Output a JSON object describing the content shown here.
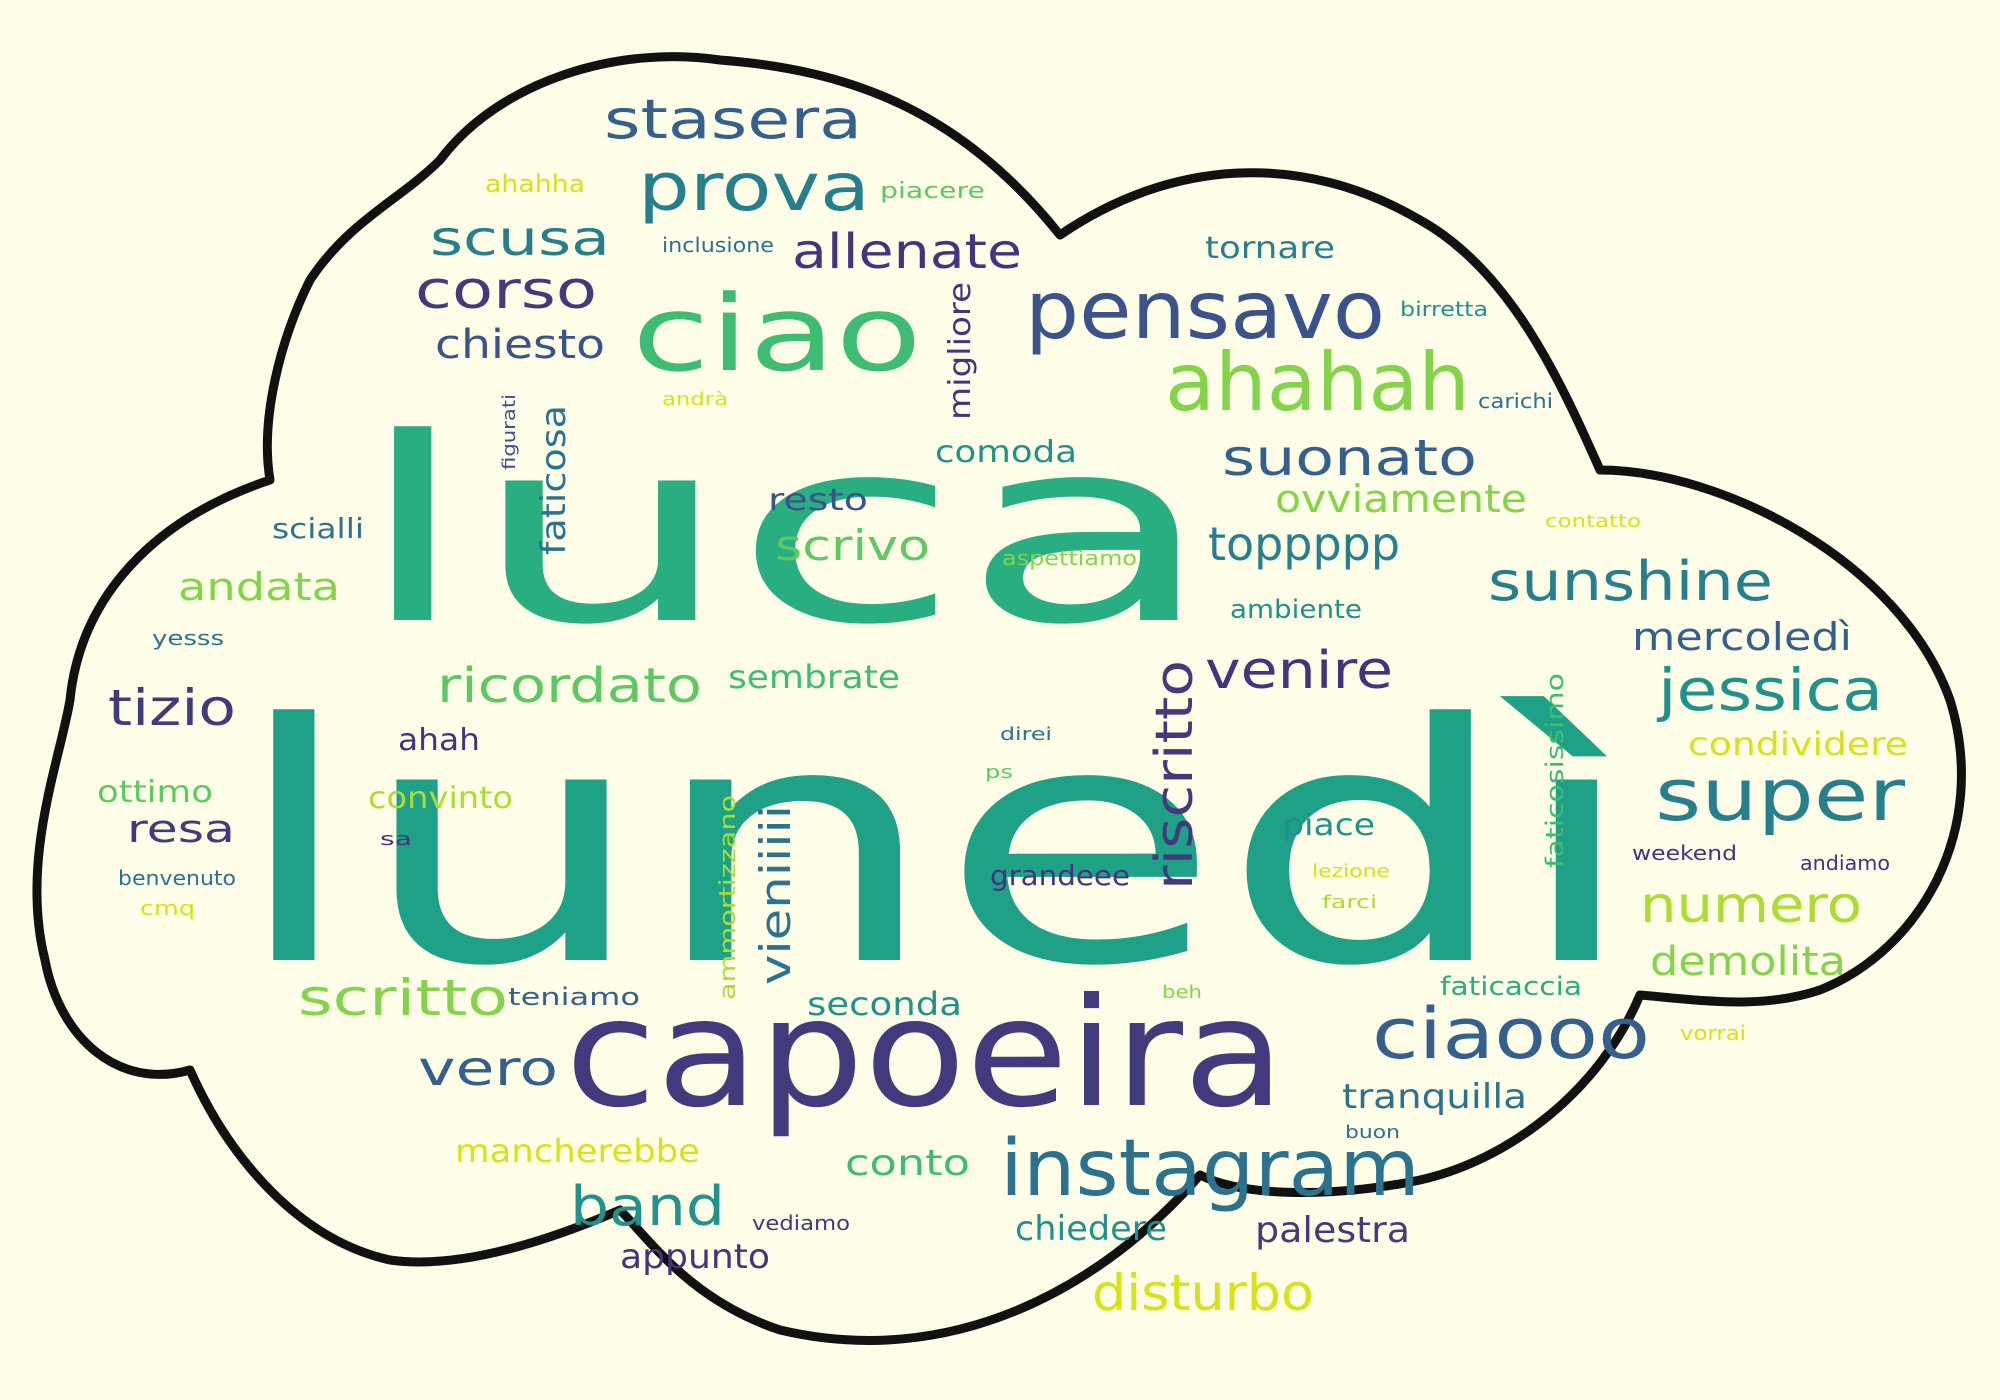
{
  "palette": {
    "dark_purple": "#46327e",
    "deep_purple": "#433a7d",
    "indigo": "#3b528b",
    "blue": "#355f8d",
    "steel_blue": "#2c728e",
    "teal_blue": "#277f8e",
    "teal": "#21918c",
    "green_teal": "#1fa187",
    "green": "#28ae80",
    "mid_green": "#3fbc73",
    "light_green": "#5ec962",
    "lime": "#84d44b",
    "yellow_green": "#addc30",
    "yellow": "#d8e219",
    "bright_yellow": "#e1e31d",
    "outline": "#111111",
    "cloud_fill": "#fdfde8"
  },
  "words": [
    {
      "text": "lunedì"
    },
    {
      "text": "luca"
    },
    {
      "text": "capoeira"
    },
    {
      "text": "ciao"
    },
    {
      "text": "pensavo"
    },
    {
      "text": "instagram"
    },
    {
      "text": "ahahah"
    },
    {
      "text": "ciaooo"
    },
    {
      "text": "prova"
    },
    {
      "text": "super"
    },
    {
      "text": "stasera"
    },
    {
      "text": "riscritto"
    },
    {
      "text": "sunshine"
    },
    {
      "text": "jessica"
    },
    {
      "text": "allenate"
    },
    {
      "text": "scusa"
    },
    {
      "text": "corso"
    },
    {
      "text": "band"
    },
    {
      "text": "suonato"
    },
    {
      "text": "venire"
    },
    {
      "text": "ricordato"
    },
    {
      "text": "scritto"
    },
    {
      "text": "numero"
    },
    {
      "text": "toppppp"
    },
    {
      "text": "tizio"
    },
    {
      "text": "chiesto"
    },
    {
      "text": "vero"
    },
    {
      "text": "disturbo"
    },
    {
      "text": "scrivo"
    },
    {
      "text": "vieniiiii"
    },
    {
      "text": "mercoledì"
    },
    {
      "text": "demolita"
    },
    {
      "text": "ovviamente"
    },
    {
      "text": "andata"
    },
    {
      "text": "palestra"
    },
    {
      "text": "resa"
    },
    {
      "text": "conto"
    },
    {
      "text": "seconda"
    },
    {
      "text": "condividere"
    },
    {
      "text": "mancherebbe"
    },
    {
      "text": "appunto"
    },
    {
      "text": "chiedere"
    },
    {
      "text": "tranquilla"
    },
    {
      "text": "sembrate"
    },
    {
      "text": "comoda"
    },
    {
      "text": "faticosa"
    },
    {
      "text": "migliore"
    },
    {
      "text": "resto"
    },
    {
      "text": "convinto"
    },
    {
      "text": "ottimo"
    },
    {
      "text": "tornare"
    },
    {
      "text": "piace"
    },
    {
      "text": "grandeee"
    },
    {
      "text": "ahah"
    },
    {
      "text": "scialli"
    },
    {
      "text": "faticaccia"
    },
    {
      "text": "ambiente"
    },
    {
      "text": "teniamo"
    },
    {
      "text": "faticosissimo"
    },
    {
      "text": "ammortizzano"
    },
    {
      "text": "aspettiamo"
    },
    {
      "text": "ahahha"
    },
    {
      "text": "piacere"
    },
    {
      "text": "inclusione"
    },
    {
      "text": "birretta"
    },
    {
      "text": "carichi"
    },
    {
      "text": "andrà"
    },
    {
      "text": "figurati"
    },
    {
      "text": "contatto"
    },
    {
      "text": "yesss"
    },
    {
      "text": "benvenuto"
    },
    {
      "text": "cmq"
    },
    {
      "text": "sa"
    },
    {
      "text": "ps"
    },
    {
      "text": "direi"
    },
    {
      "text": "lezione"
    },
    {
      "text": "farci"
    },
    {
      "text": "weekend"
    },
    {
      "text": "andiamo"
    },
    {
      "text": "beh"
    },
    {
      "text": "vorrai"
    },
    {
      "text": "buon"
    },
    {
      "text": "vediamo"
    }
  ]
}
